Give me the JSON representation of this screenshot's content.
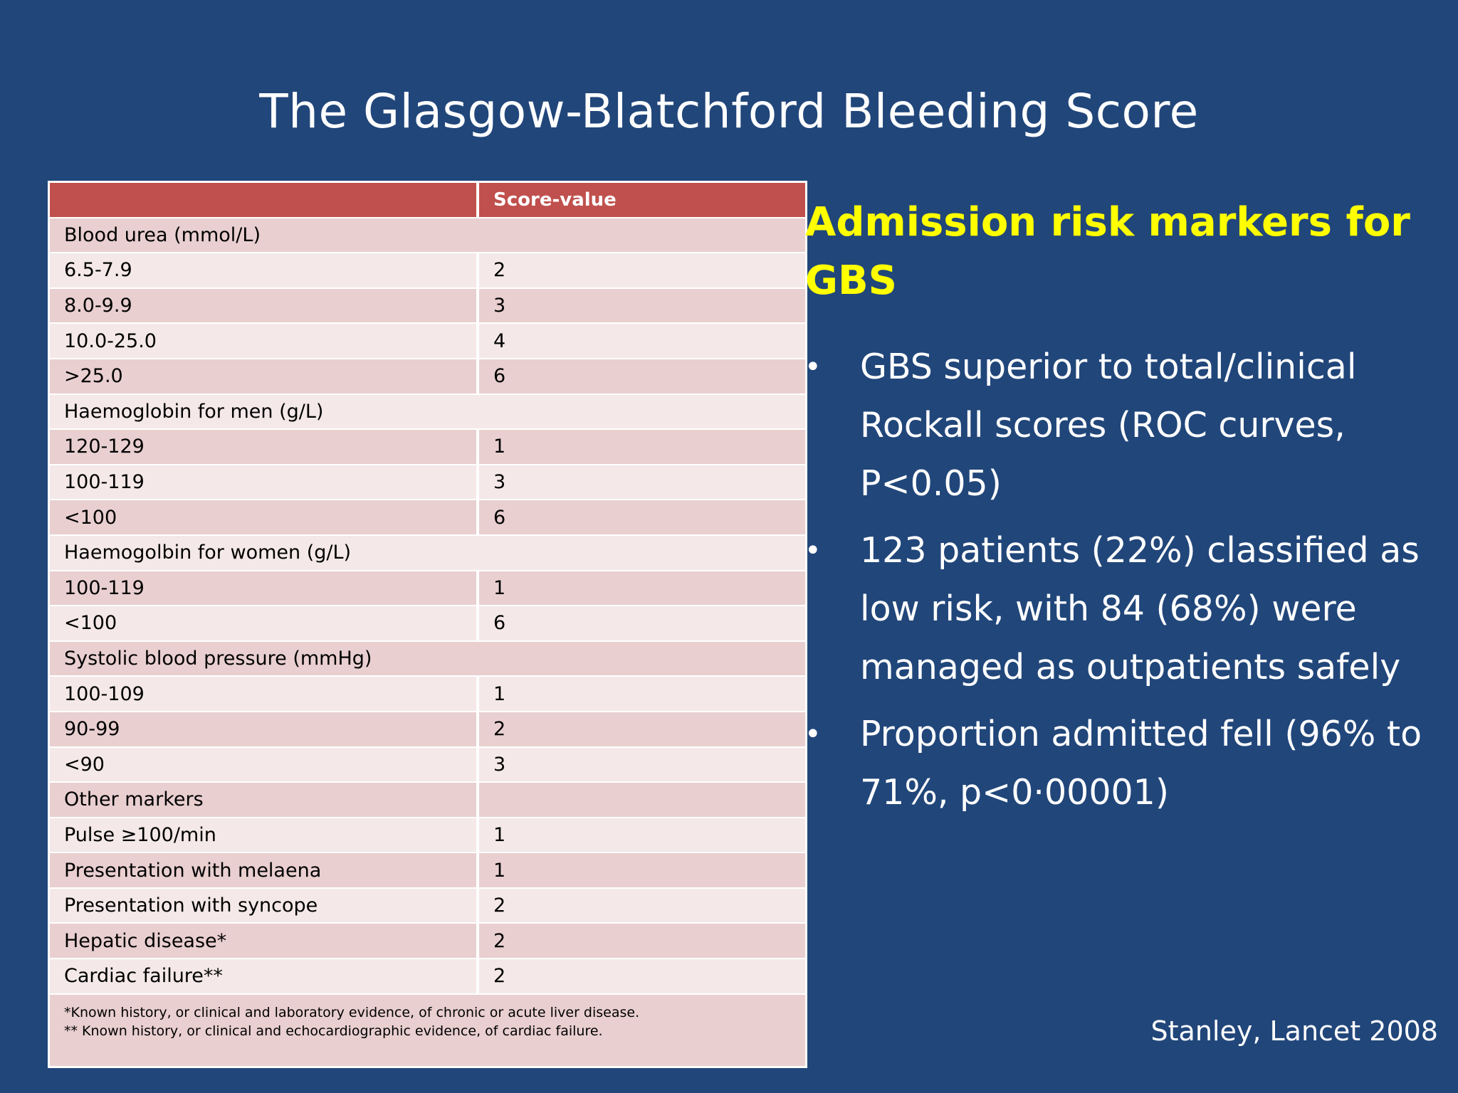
{
  "title": "The Glasgow-Blatchford Bleeding Score",
  "table": {
    "header": {
      "col1": "",
      "col2": "Score-value"
    },
    "rows": [
      {
        "label": "Blood urea (mmol/L)",
        "value": "",
        "span": true
      },
      {
        "label": "6.5-7.9",
        "value": "2"
      },
      {
        "label": "8.0-9.9",
        "value": "3"
      },
      {
        "label": "10.0-25.0",
        "value": "4"
      },
      {
        "label": ">25.0",
        "value": "6"
      },
      {
        "label": "Haemoglobin for men (g/L)",
        "value": "",
        "span": true
      },
      {
        "label": "120-129",
        "value": "1"
      },
      {
        "label": "100-119",
        "value": "3"
      },
      {
        "label": "<100",
        "value": "6"
      },
      {
        "label": "Haemogolbin for women (g/L)",
        "value": "",
        "span": true
      },
      {
        "label": "100-119",
        "value": "1"
      },
      {
        "label": "<100",
        "value": "6"
      },
      {
        "label": "Systolic blood pressure (mmHg)",
        "value": "",
        "span": true
      },
      {
        "label": "100-109",
        "value": "1"
      },
      {
        "label": "90-99",
        "value": "2"
      },
      {
        "label": "<90",
        "value": "3"
      },
      {
        "label": "Other markers",
        "value": ""
      },
      {
        "label": "Pulse ≥100/min",
        "value": "1"
      },
      {
        "label": "Presentation with melaena",
        "value": "1"
      },
      {
        "label": "Presentation with syncope",
        "value": "2"
      },
      {
        "label": "Hepatic disease*",
        "value": "2"
      },
      {
        "label": "Cardiac failure**",
        "value": "2"
      }
    ],
    "footnotes": [
      "*Known history, or clinical and laboratory evidence, of chronic or acute liver disease.",
      "** Known history, or clinical and echocardiographic evidence, of cardiac failure."
    ]
  },
  "side": {
    "heading": "Admission risk markers for GBS",
    "bullet_symbol": "•",
    "bullets": [
      "GBS superior to total/clinical Rockall scores (ROC curves, P<0.05)",
      "123 patients (22%) classified as low risk, with 84 (68%) were managed as outpatients safely",
      "Proportion admitted fell (96% to 71%, p<0·00001)"
    ]
  },
  "citation": "Stanley, Lancet 2008",
  "colors": {
    "background": "#21467a",
    "header_red": "#c0504d",
    "heading_yellow": "#ffff00",
    "row_dark": "#e9cfd0",
    "row_light": "#f4e8e8"
  }
}
